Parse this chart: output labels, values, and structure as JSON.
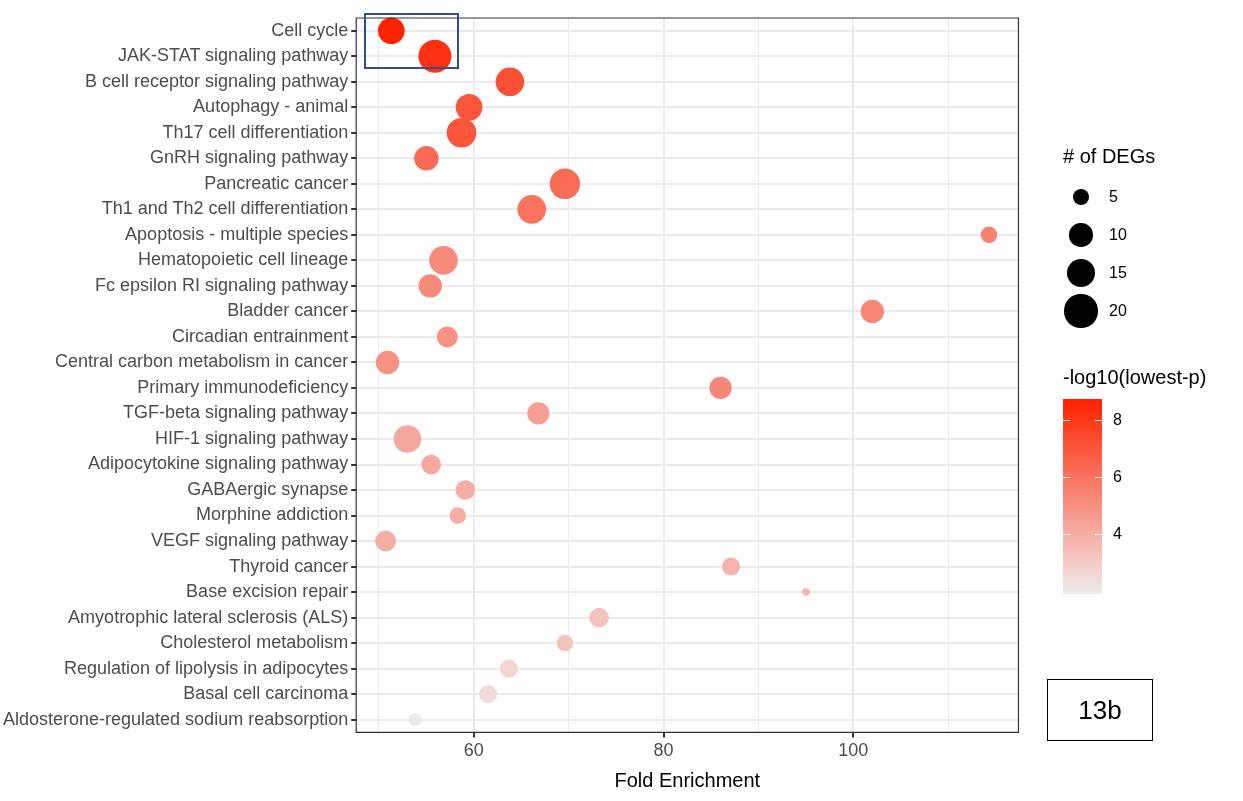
{
  "chart_data": {
    "type": "bubble",
    "xlabel": "Fold Enrichment",
    "legend_title": "# of DEGs",
    "clabel": "-log10(lowest-p)",
    "annotations": [
      "13b"
    ],
    "categories": [
      "Cell cycle",
      "JAK-STAT signaling pathway",
      "B cell receptor signaling pathway",
      "Autophagy - animal",
      "Th17 cell differentiation",
      "GnRH signaling pathway",
      "Pancreatic cancer",
      "Th1 and Th2 cell differentiation",
      "Apoptosis - multiple species",
      "Hematopoietic cell lineage",
      "Fc epsilon RI signaling pathway",
      "Bladder cancer",
      "Circadian entrainment",
      "Central carbon metabolism in cancer",
      "Primary immunodeficiency",
      "TGF-beta signaling pathway",
      "HIF-1 signaling pathway",
      "Adipocytokine signaling pathway",
      "GABAergic synapse",
      "Morphine addiction",
      "VEGF signaling pathway",
      "Thyroid cancer",
      "Base excision repair",
      "Amyotrophic lateral sclerosis (ALS)",
      "Cholesterol metabolism",
      "Regulation of lipolysis in adipocytes",
      "Basal cell carcinoma",
      "Aldosterone-regulated sodium reabsorption"
    ],
    "values": [
      51.3,
      55.9,
      63.8,
      59.5,
      58.7,
      55.0,
      69.6,
      66.1,
      114.3,
      56.8,
      55.4,
      102.0,
      57.2,
      50.9,
      86.0,
      66.8,
      53.0,
      55.5,
      59.1,
      58.3,
      50.7,
      87.1,
      95.0,
      73.2,
      69.6,
      63.7,
      61.5,
      53.8
    ],
    "sizes": [
      13,
      20,
      15,
      13,
      16,
      11,
      17,
      15,
      5,
      15,
      10,
      10,
      8,
      10,
      9,
      9,
      14,
      7,
      7,
      5,
      8,
      6,
      1,
      7,
      5,
      6,
      6,
      3
    ],
    "cvalues": [
      8.7,
      8.2,
      7.2,
      7.0,
      7.0,
      6.3,
      6.2,
      6.0,
      5.5,
      5.2,
      5.2,
      5.3,
      5.0,
      5.0,
      5.3,
      4.5,
      4.2,
      4.2,
      4.0,
      4.0,
      4.0,
      3.8,
      3.8,
      3.3,
      3.3,
      2.7,
      2.5,
      2.0
    ],
    "size_legend": [
      5,
      10,
      15,
      20
    ],
    "clim": [
      1.9,
      8.75
    ],
    "cticks": [
      4,
      6,
      8
    ],
    "xlim": [
      47.6,
      117.4
    ],
    "xticks": [
      {
        "value": 50,
        "label": null
      },
      60,
      {
        "value": 70,
        "label": null
      },
      80,
      {
        "value": 90,
        "label": null
      },
      100,
      {
        "value": 110,
        "label": null
      }
    ],
    "grid": true,
    "orientation": "horizontal"
  }
}
